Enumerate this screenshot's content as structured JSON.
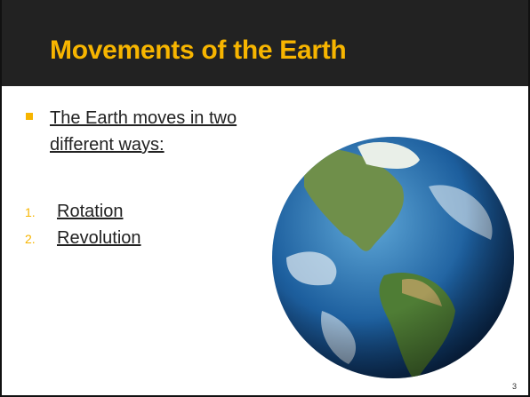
{
  "header": {
    "title": "Movements of the Earth"
  },
  "body": {
    "bullet": "The Earth moves in two different ways:",
    "list": [
      {
        "marker": "1.",
        "text": "Rotation"
      },
      {
        "marker": "2.",
        "text": "Revolution"
      }
    ]
  },
  "footer": {
    "page_number": "3"
  }
}
